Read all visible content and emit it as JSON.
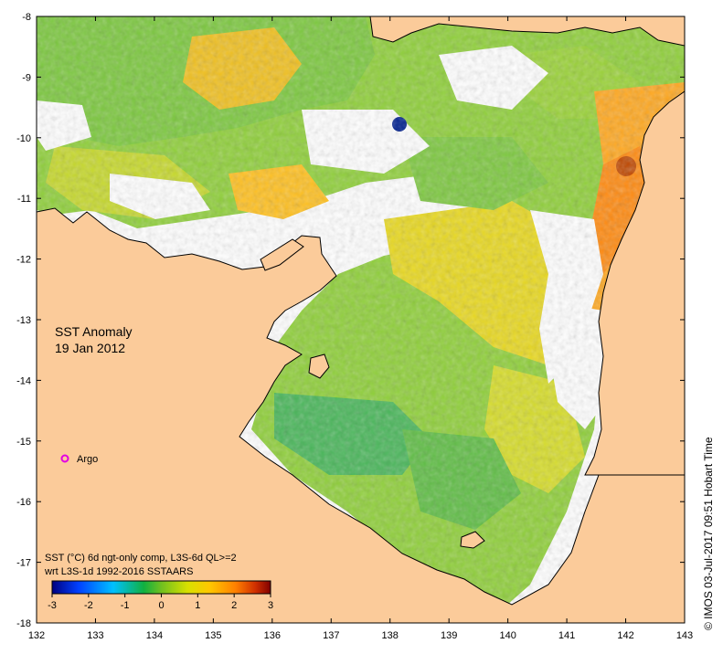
{
  "map": {
    "title": "SST Anomaly",
    "date": "19 Jan 2012",
    "colors": {
      "land": "#fbcb9a",
      "no_data": "#ffffff",
      "coast": "#000000",
      "argo_marker": "#e300e3"
    },
    "legend": {
      "line1": "SST (°C) 6d ngt-only comp, L3S-6d QL>=2",
      "line2": "wrt L3S-1d 1992-2016 SSTAARS",
      "min": -3,
      "max": 3,
      "tick_labels": [
        "-3",
        "-2",
        "-1",
        "0",
        "1",
        "2",
        "3"
      ],
      "colormap": [
        "#00007f",
        "#0040ff",
        "#00c0ff",
        "#2ca02c",
        "#c8d400",
        "#ffd000",
        "#ff9000",
        "#e05000",
        "#8b0000"
      ]
    },
    "argo": {
      "label": "Argo",
      "lon": 132.5,
      "lat": -15.3
    },
    "credit": "© IMOS 03-Jul-2017 09:51 Hobart Time",
    "x_ticks": [
      "132",
      "133",
      "134",
      "135",
      "136",
      "137",
      "138",
      "139",
      "140",
      "141",
      "142",
      "143"
    ],
    "y_ticks": [
      "-8",
      "-9",
      "-10",
      "-11",
      "-12",
      "-13",
      "-14",
      "-15",
      "-16",
      "-17",
      "-18"
    ],
    "lon_range": [
      132,
      143
    ],
    "lat_range": [
      -18,
      -8
    ]
  }
}
